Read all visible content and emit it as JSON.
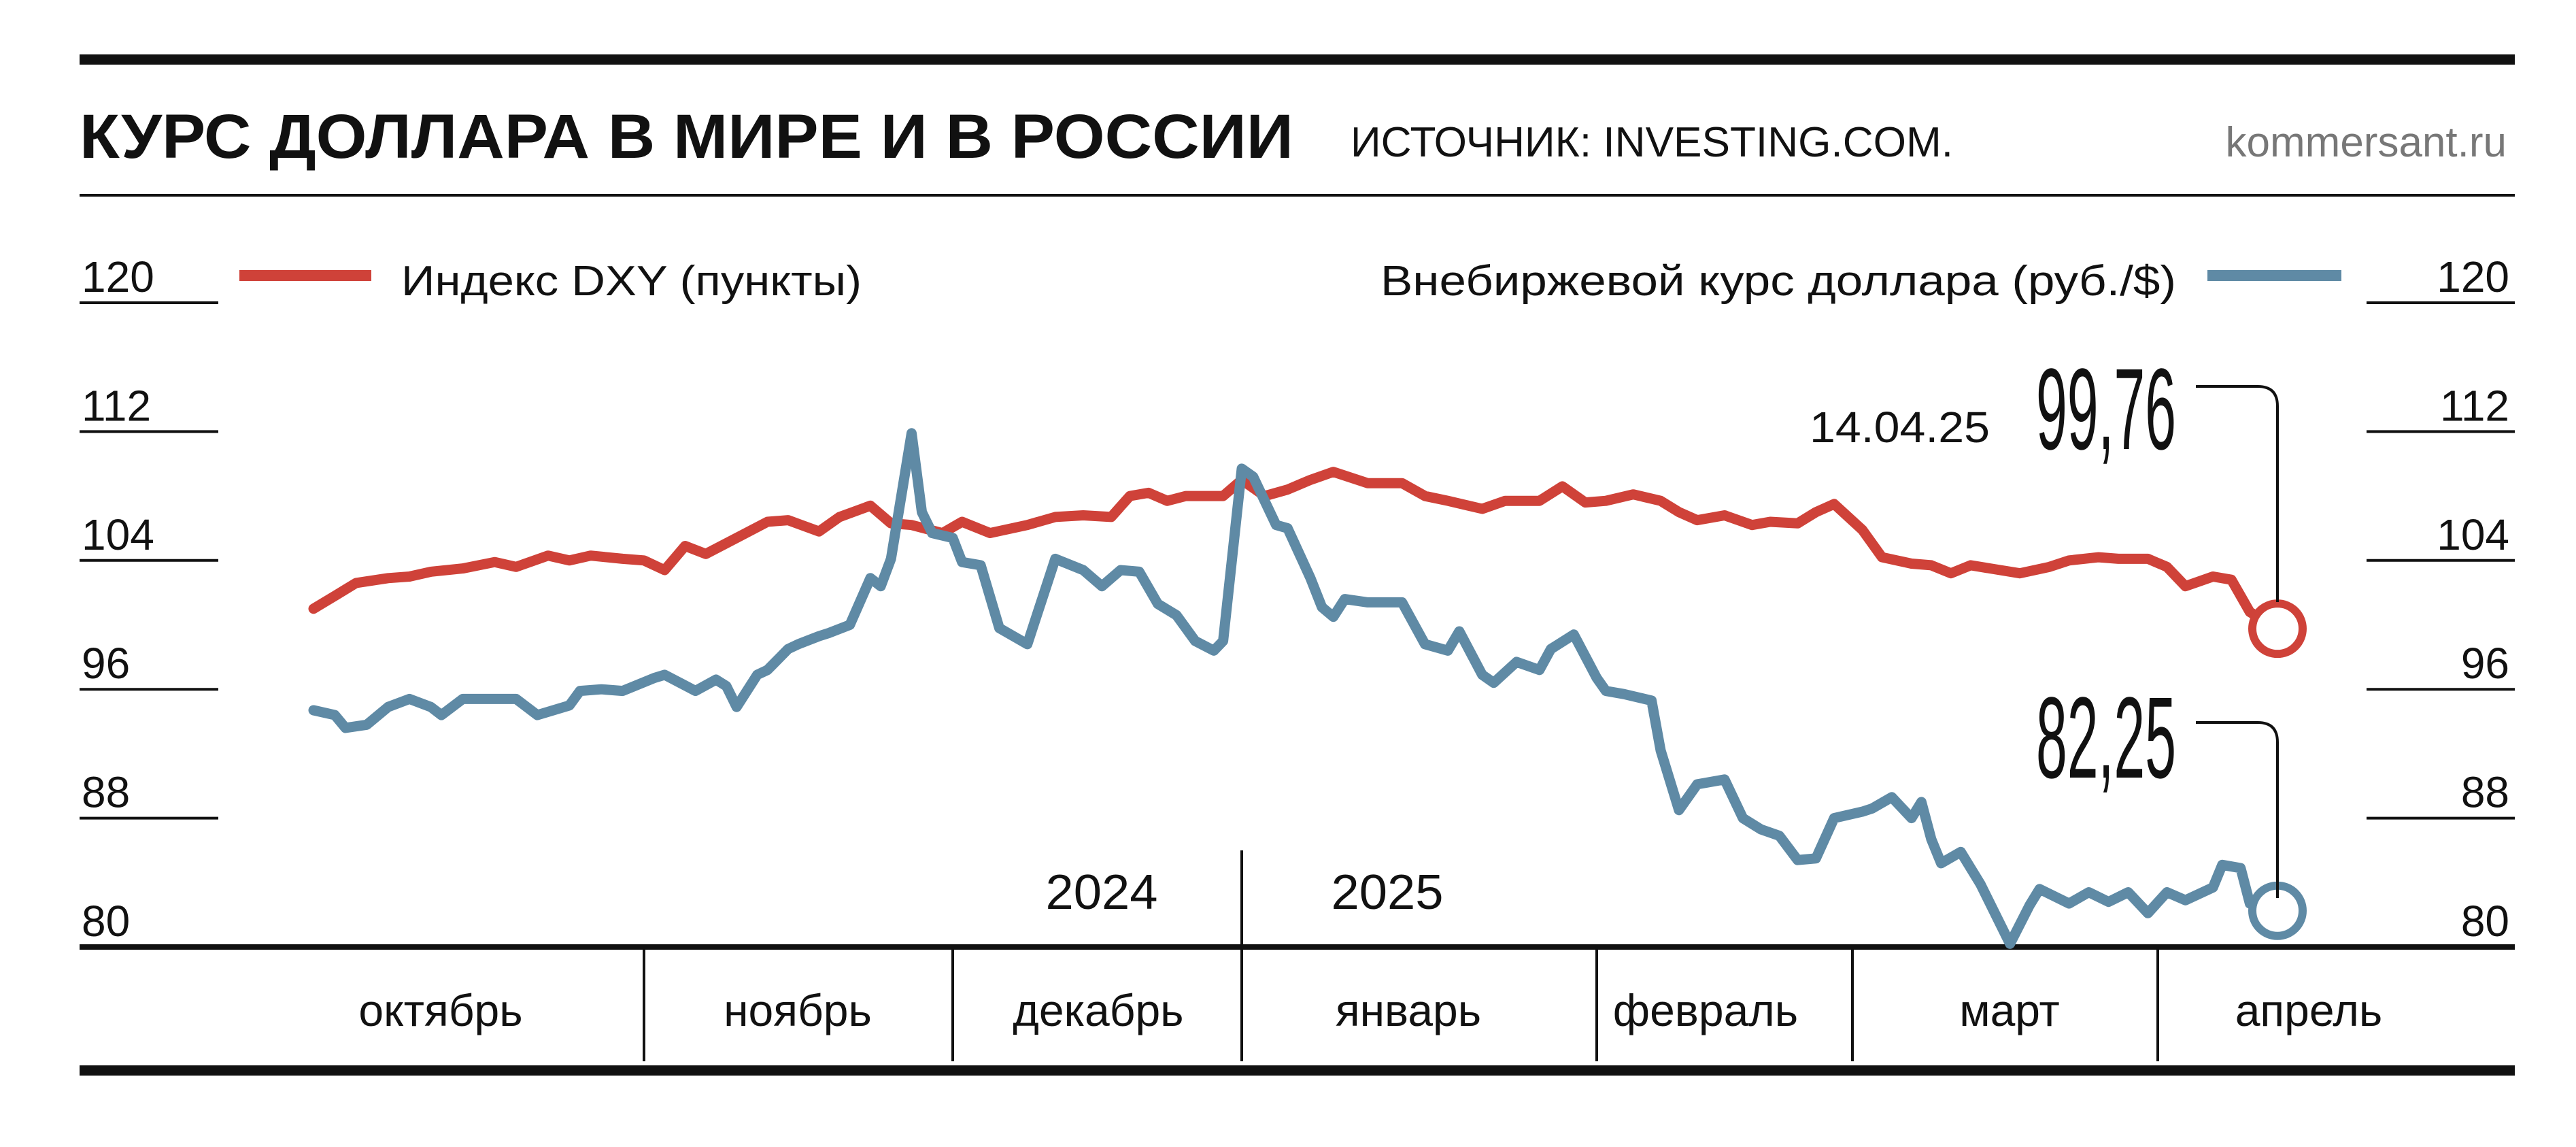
{
  "header": {
    "title": "КУРС ДОЛЛАРА В МИРЕ И В РОССИИ",
    "source": "ИСТОЧНИК: INVESTING.COM.",
    "site": "kommersant.ru"
  },
  "chart_data": {
    "type": "line",
    "title": "КУРС ДОЛЛАРА В МИРЕ И В РОССИИ",
    "x_unit": "days since 2024-10-01",
    "xlim": [
      0,
      195
    ],
    "ylim": [
      80,
      120
    ],
    "yticks": [
      80,
      88,
      96,
      104,
      112,
      120
    ],
    "yticks_left_labels": [
      "80",
      "88",
      "96",
      "104",
      "112",
      "120"
    ],
    "yticks_right_labels": [
      "80",
      "88",
      "96",
      "104",
      "112",
      "120"
    ],
    "months": [
      "октябрь",
      "ноябрь",
      "декабрь",
      "январь",
      "февраль",
      "март",
      "апрель"
    ],
    "years": [
      "2024",
      "2025"
    ],
    "grid": false,
    "legend_placement": "top",
    "annotation": {
      "date": "14.04.25",
      "dxy_last": "99,76",
      "rub_last": "82,25"
    },
    "series": [
      {
        "name": "Индекс DXY (пункты)",
        "color": "#cf4239",
        "points": [
          [
            0,
            101.0
          ],
          [
            2,
            101.8
          ],
          [
            4,
            102.6
          ],
          [
            7,
            102.9
          ],
          [
            9,
            103.0
          ],
          [
            11,
            103.3
          ],
          [
            14,
            103.5
          ],
          [
            17,
            103.9
          ],
          [
            19,
            103.6
          ],
          [
            22,
            104.3
          ],
          [
            24,
            104.0
          ],
          [
            26,
            104.3
          ],
          [
            29,
            104.1
          ],
          [
            31,
            104.0
          ],
          [
            33,
            103.4
          ],
          [
            35,
            104.9
          ],
          [
            37,
            104.4
          ],
          [
            40,
            105.4
          ],
          [
            43,
            106.4
          ],
          [
            45,
            106.5
          ],
          [
            48,
            105.8
          ],
          [
            50,
            106.7
          ],
          [
            53,
            107.4
          ],
          [
            55,
            106.3
          ],
          [
            57,
            106.2
          ],
          [
            60,
            105.7
          ],
          [
            62,
            106.4
          ],
          [
            65,
            105.7
          ],
          [
            69,
            106.2
          ],
          [
            72,
            106.7
          ],
          [
            75,
            106.8
          ],
          [
            78,
            106.7
          ],
          [
            80,
            108.0
          ],
          [
            82,
            108.2
          ],
          [
            84,
            107.7
          ],
          [
            86,
            108.0
          ],
          [
            90,
            108.0
          ],
          [
            92,
            109.0
          ],
          [
            94,
            108.0
          ],
          [
            96,
            108.4
          ],
          [
            98,
            109.0
          ],
          [
            100,
            109.5
          ],
          [
            103,
            108.8
          ],
          [
            106,
            108.8
          ],
          [
            108,
            108.0
          ],
          [
            110,
            107.7
          ],
          [
            113,
            107.2
          ],
          [
            115,
            107.7
          ],
          [
            118,
            107.7
          ],
          [
            120,
            108.6
          ],
          [
            122,
            107.6
          ],
          [
            124,
            107.7
          ],
          [
            127,
            108.1
          ],
          [
            130,
            107.7
          ],
          [
            132,
            107.0
          ],
          [
            134,
            106.5
          ],
          [
            137,
            106.8
          ],
          [
            140,
            106.2
          ],
          [
            142,
            106.4
          ],
          [
            145,
            106.3
          ],
          [
            147,
            107.0
          ],
          [
            149,
            107.5
          ],
          [
            152,
            105.9
          ],
          [
            154,
            104.2
          ],
          [
            157,
            103.8
          ],
          [
            159,
            103.7
          ],
          [
            161,
            103.2
          ],
          [
            163,
            103.7
          ],
          [
            166,
            103.4
          ],
          [
            168,
            103.2
          ],
          [
            171,
            103.6
          ],
          [
            173,
            104.0
          ],
          [
            176,
            104.2
          ],
          [
            178,
            104.1
          ],
          [
            181,
            104.1
          ],
          [
            183,
            103.6
          ],
          [
            185,
            102.4
          ],
          [
            188,
            103.0
          ],
          [
            190,
            102.8
          ],
          [
            192,
            100.8
          ],
          [
            195,
            99.76
          ]
        ]
      },
      {
        "name": "Внебиржевой курс доллара (руб./$)",
        "color": "#5f8aa5",
        "points": [
          [
            0,
            94.7
          ],
          [
            2,
            94.4
          ],
          [
            3,
            93.6
          ],
          [
            5,
            93.8
          ],
          [
            7,
            94.9
          ],
          [
            9,
            95.4
          ],
          [
            11,
            94.9
          ],
          [
            12,
            94.4
          ],
          [
            14,
            95.4
          ],
          [
            16,
            95.4
          ],
          [
            19,
            95.4
          ],
          [
            21,
            94.4
          ],
          [
            24,
            95.0
          ],
          [
            25,
            95.9
          ],
          [
            27,
            96.0
          ],
          [
            29,
            95.9
          ],
          [
            32,
            96.7
          ],
          [
            33,
            96.9
          ],
          [
            36,
            95.9
          ],
          [
            38,
            96.6
          ],
          [
            39,
            96.2
          ],
          [
            40,
            94.9
          ],
          [
            42,
            96.9
          ],
          [
            43,
            97.2
          ],
          [
            45,
            98.5
          ],
          [
            46,
            98.8
          ],
          [
            48,
            99.3
          ],
          [
            49,
            99.5
          ],
          [
            51,
            100.0
          ],
          [
            53,
            102.9
          ],
          [
            54,
            102.4
          ],
          [
            55,
            104.1
          ],
          [
            57,
            111.9
          ],
          [
            58,
            107.0
          ],
          [
            59,
            105.7
          ],
          [
            61,
            105.4
          ],
          [
            62,
            103.9
          ],
          [
            64,
            103.7
          ],
          [
            66,
            99.8
          ],
          [
            69,
            98.8
          ],
          [
            72,
            104.1
          ],
          [
            75,
            103.4
          ],
          [
            77,
            102.4
          ],
          [
            79,
            103.4
          ],
          [
            81,
            103.3
          ],
          [
            83,
            101.3
          ],
          [
            85,
            100.6
          ],
          [
            87,
            99.0
          ],
          [
            89,
            98.4
          ],
          [
            90,
            99.0
          ],
          [
            92,
            109.7
          ],
          [
            93,
            109.2
          ],
          [
            95,
            106.2
          ],
          [
            96,
            106.0
          ],
          [
            98,
            102.9
          ],
          [
            99,
            101.1
          ],
          [
            100,
            100.5
          ],
          [
            101,
            101.6
          ],
          [
            103,
            101.4
          ],
          [
            106,
            101.4
          ],
          [
            108,
            98.8
          ],
          [
            110,
            98.4
          ],
          [
            111,
            99.6
          ],
          [
            113,
            96.9
          ],
          [
            114,
            96.4
          ],
          [
            116,
            97.7
          ],
          [
            118,
            97.2
          ],
          [
            119,
            98.5
          ],
          [
            121,
            99.4
          ],
          [
            123,
            96.7
          ],
          [
            124,
            95.9
          ],
          [
            126,
            95.7
          ],
          [
            129,
            95.3
          ],
          [
            130,
            92.2
          ],
          [
            132,
            88.5
          ],
          [
            134,
            90.1
          ],
          [
            137,
            90.4
          ],
          [
            139,
            88.0
          ],
          [
            141,
            87.3
          ],
          [
            143,
            86.9
          ],
          [
            145,
            85.4
          ],
          [
            147,
            85.5
          ],
          [
            149,
            88.0
          ],
          [
            152,
            88.4
          ],
          [
            153,
            88.6
          ],
          [
            155,
            89.3
          ],
          [
            157,
            88.0
          ],
          [
            158,
            89.0
          ],
          [
            159,
            86.7
          ],
          [
            160,
            85.2
          ],
          [
            162,
            85.9
          ],
          [
            164,
            83.9
          ],
          [
            167,
            80.2
          ],
          [
            169,
            82.6
          ],
          [
            170,
            83.6
          ],
          [
            173,
            82.7
          ],
          [
            175,
            83.4
          ],
          [
            177,
            82.8
          ],
          [
            179,
            83.4
          ],
          [
            181,
            82.1
          ],
          [
            183,
            83.4
          ],
          [
            185,
            82.9
          ],
          [
            188,
            83.7
          ],
          [
            189,
            85.1
          ],
          [
            191,
            84.9
          ],
          [
            192,
            82.7
          ],
          [
            195,
            82.25
          ]
        ]
      }
    ]
  }
}
